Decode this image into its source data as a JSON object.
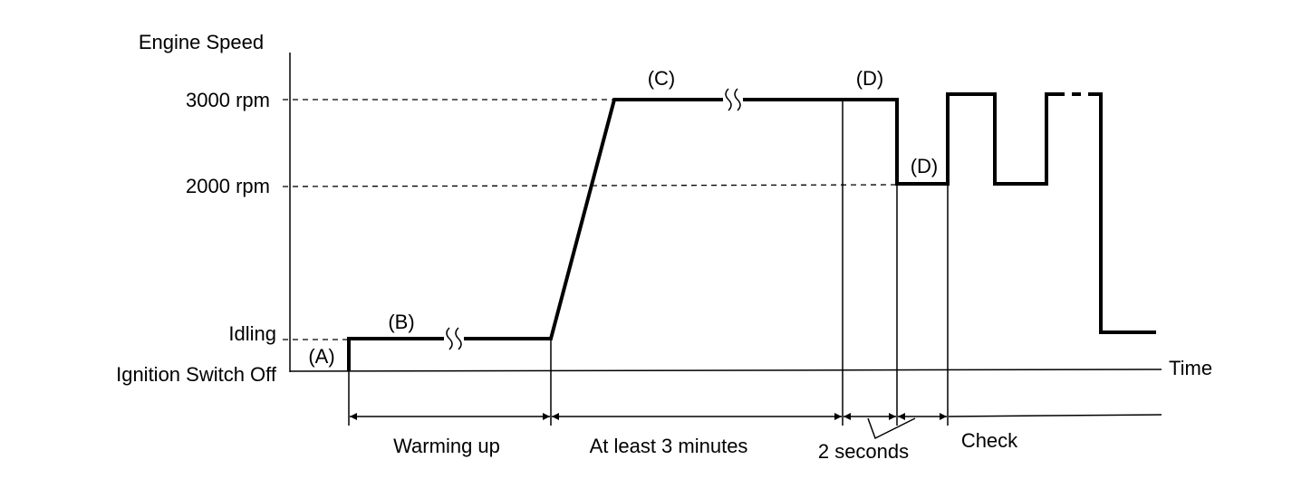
{
  "y_axis_title": "Engine Speed",
  "levels": [
    "3000 rpm",
    "2000 rpm",
    "Idling",
    "Ignition Switch Off"
  ],
  "x_axis_title": "Time",
  "points": [
    "(A)",
    "(B)",
    "(C)",
    "(D)",
    "(D)"
  ],
  "phases": [
    "Warming up",
    "At least 3 minutes",
    "2 seconds",
    "Check"
  ]
}
